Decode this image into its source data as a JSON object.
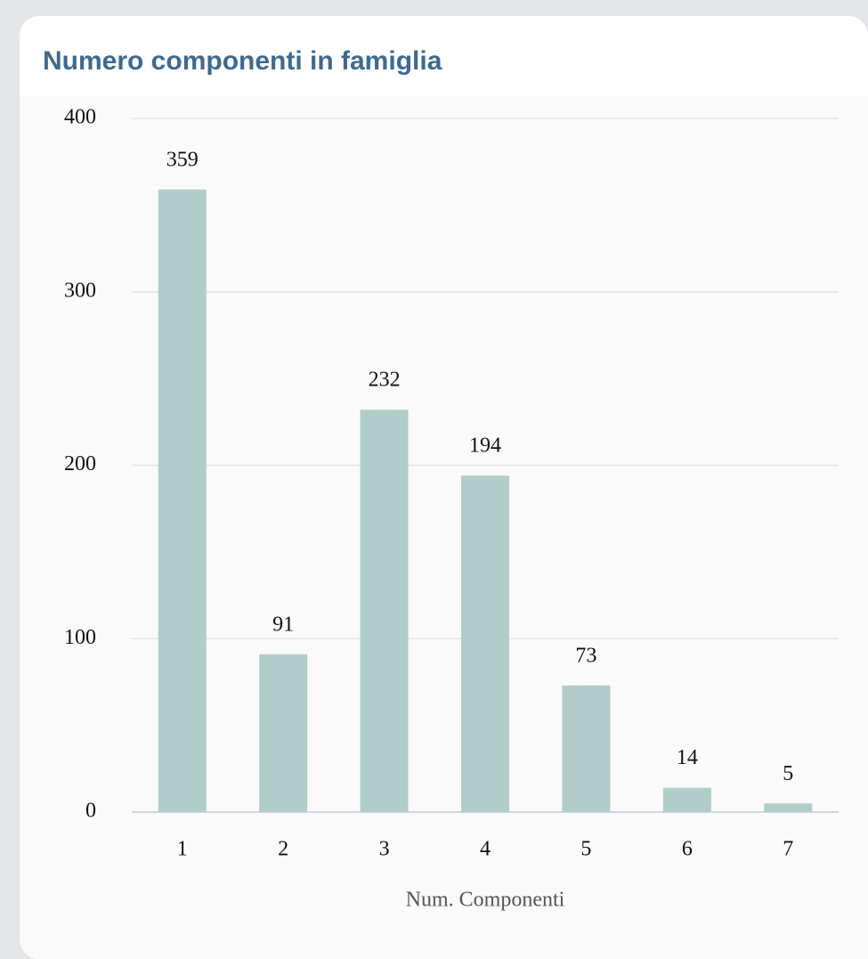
{
  "chart_data": {
    "type": "bar",
    "title": "Numero componenti in famiglia",
    "x_label": "Num. Componenti",
    "categories": [
      "1",
      "2",
      "3",
      "4",
      "5",
      "6",
      "7"
    ],
    "values": [
      359,
      91,
      232,
      194,
      73,
      14,
      5
    ],
    "color": "#b1cdca",
    "ylim": [
      0,
      400
    ],
    "yticks": [
      0,
      100,
      200,
      300,
      400
    ],
    "grid": true
  }
}
